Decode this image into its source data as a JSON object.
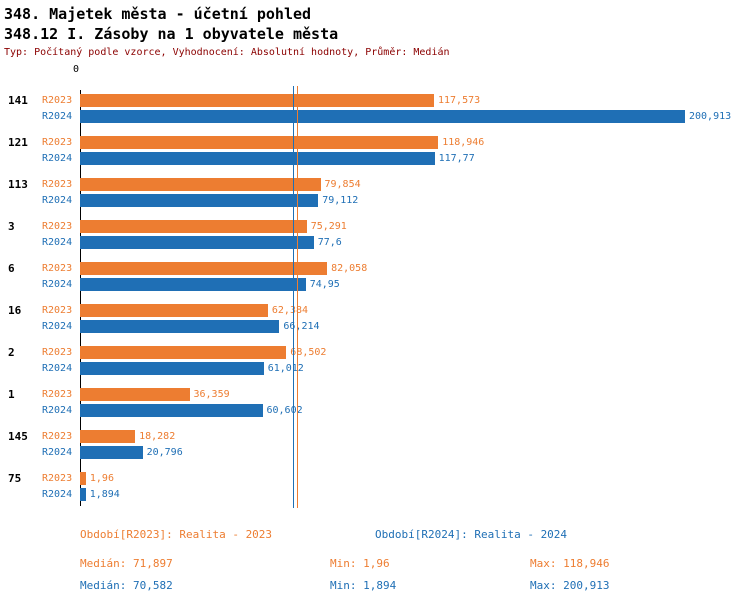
{
  "header": {
    "title": "348. Majetek města - účetní pohled",
    "subtitle": "348.12 I. Zásoby na 1 obyvatele města",
    "meta": "Typ: Počítaný podle vzorce, Vyhodnocení: Absolutní hodnoty, Průměr: Medián"
  },
  "colors": {
    "r2023": "#ED7D31",
    "r2024": "#1F6FB5",
    "meta_text": "#8B0000"
  },
  "chart_data": {
    "type": "bar",
    "orientation": "horizontal",
    "title": "348.12 I. Zásoby na 1 obyvatele města",
    "categories": [
      "141",
      "121",
      "113",
      "3",
      "6",
      "16",
      "2",
      "1",
      "145",
      "75"
    ],
    "series": [
      {
        "name": "R2023",
        "color": "#ED7D31",
        "values": [
          117.573,
          118.946,
          79.854,
          75.291,
          82.058,
          62.384,
          68.502,
          36.359,
          18.282,
          1.96
        ],
        "labels": [
          "117,573",
          "118,946",
          "79,854",
          "75,291",
          "82,058",
          "62,384",
          "68,502",
          "36,359",
          "18,282",
          "1,96"
        ]
      },
      {
        "name": "R2024",
        "color": "#1F6FB5",
        "values": [
          200.913,
          117.77,
          79.112,
          77.6,
          74.95,
          66.214,
          61.012,
          60.602,
          20.796,
          1.894
        ],
        "labels": [
          "200,913",
          "117,77",
          "79,112",
          "77,6",
          "74,95",
          "66,214",
          "61,012",
          "60,602",
          "20,796",
          "1,894"
        ]
      }
    ],
    "x_axis": {
      "zero_label": "0",
      "min": 0,
      "max": 200.913
    },
    "median_lines": [
      {
        "series": "R2023",
        "value": 71.897,
        "color": "#ED7D31"
      },
      {
        "series": "R2024",
        "value": 70.582,
        "color": "#1F6FB5"
      }
    ],
    "legend_position": "bottom",
    "grid": false
  },
  "legend": {
    "r2023_label": "Období[R2023]: Realita - 2023",
    "r2024_label": "Období[R2024]: Realita - 2024"
  },
  "stats": {
    "r2023": {
      "median": "Medián: 71,897",
      "min": "Min: 1,96",
      "max": "Max: 118,946"
    },
    "r2024": {
      "median": "Medián: 70,582",
      "min": "Min: 1,894",
      "max": "Max: 200,913"
    }
  }
}
